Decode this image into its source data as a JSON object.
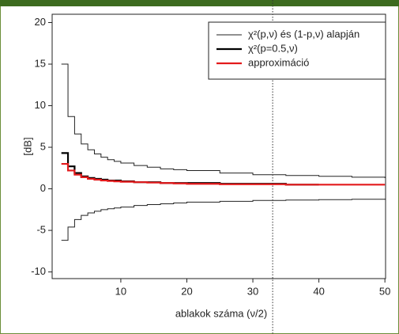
{
  "chart_data": {
    "type": "step",
    "x_label": "ablakok száma (ν/2)",
    "y_label": "[dB]",
    "x": [
      1,
      2,
      3,
      4,
      5,
      6,
      7,
      8,
      9,
      10,
      12,
      14,
      16,
      18,
      20,
      25,
      30,
      35,
      40,
      45,
      50
    ],
    "series": [
      {
        "name": "χ²(p,ν) és (1-p,ν) alapján",
        "color": "#222222",
        "width": 1,
        "values": [
          15,
          8.7,
          6.6,
          5.4,
          4.7,
          4.2,
          3.8,
          3.5,
          3.3,
          3.1,
          2.8,
          2.6,
          2.4,
          2.3,
          2.2,
          1.9,
          1.7,
          1.6,
          1.5,
          1.4,
          1.3
        ]
      },
      {
        "name": "χ²(p,ν) és (1-p,ν) alapján",
        "color": "#222222",
        "width": 1,
        "in_legend": false,
        "values": [
          -6.2,
          -4.6,
          -3.7,
          -3.2,
          -2.9,
          -2.7,
          -2.5,
          -2.4,
          -2.3,
          -2.2,
          -2.0,
          -1.9,
          -1.8,
          -1.7,
          -1.6,
          -1.5,
          -1.4,
          -1.35,
          -1.3,
          -1.25,
          -1.2
        ]
      },
      {
        "name": "χ²(p=0.5,ν)",
        "color": "#000000",
        "width": 2.2,
        "values": [
          4.3,
          2.7,
          1.9,
          1.5,
          1.3,
          1.2,
          1.1,
          1.0,
          1.0,
          0.9,
          0.8,
          0.8,
          0.7,
          0.7,
          0.7,
          0.6,
          0.6,
          0.5,
          0.5,
          null,
          null
        ]
      },
      {
        "name": "approximáció",
        "color": "#e31a1c",
        "width": 2.2,
        "values": [
          3.0,
          2.2,
          1.7,
          1.4,
          1.2,
          1.1,
          1.0,
          0.95,
          0.9,
          0.85,
          0.8,
          0.75,
          0.7,
          0.65,
          0.6,
          0.55,
          0.55,
          0.5,
          0.5,
          0.5,
          0.5
        ]
      }
    ],
    "xlim": [
      -0.4,
      50.1
    ],
    "ylim": [
      -10.8,
      21
    ],
    "xticks": [
      10,
      20,
      30,
      40,
      50
    ],
    "yticks": [
      -10,
      -5,
      0,
      5,
      10,
      15,
      20
    ],
    "vline": 33,
    "legend": "top-right"
  }
}
